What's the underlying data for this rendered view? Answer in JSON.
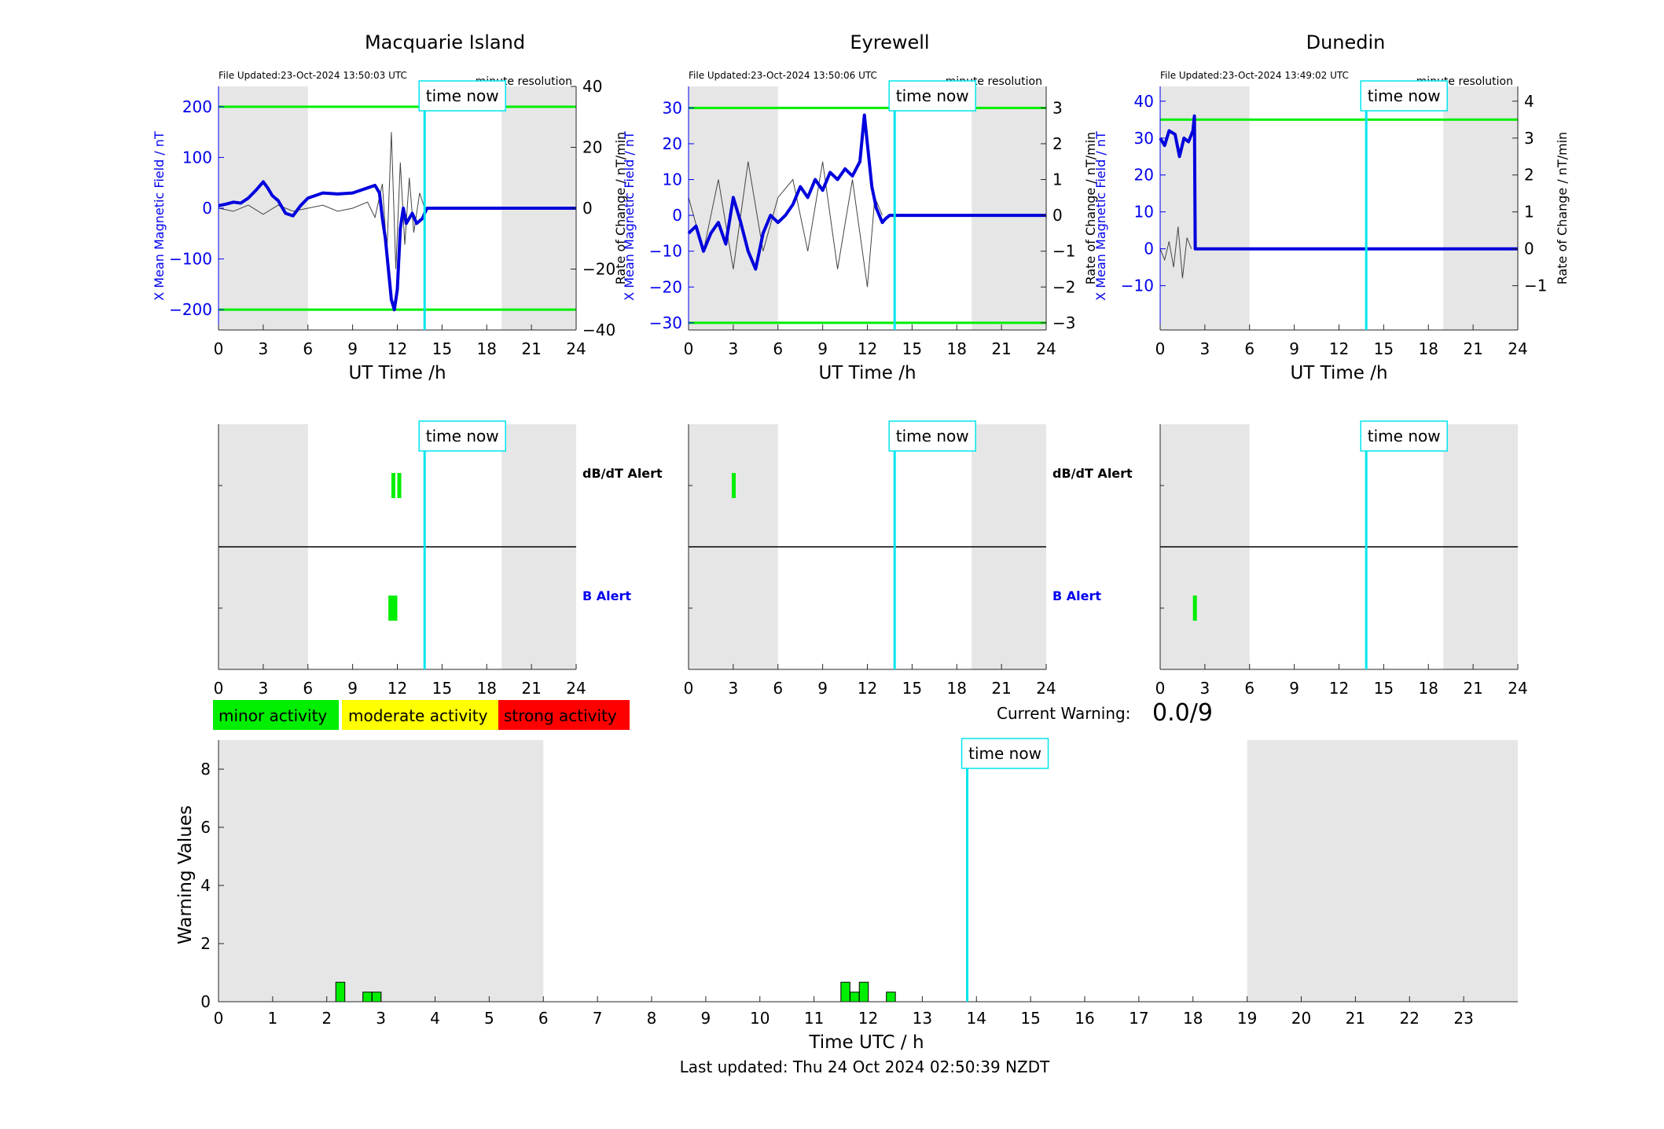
{
  "colors": {
    "shade": "#e6e6e6",
    "threshold": "#00ee00",
    "mean_line": "#0000dd",
    "roc_line": "#444444",
    "now_line": "#00e5ee",
    "alert_bar": "#00ee00",
    "minor": "#00ee00",
    "moderate": "#ffff00",
    "strong": "#ff0000",
    "axis_blue": "#0000ee"
  },
  "common": {
    "xlabel": "UT Time /h",
    "time_now_label": "time now",
    "resolution_label": "minute resolution",
    "left_ylabel": "X Mean Magnetic Field / nT",
    "right_ylabel": "Rate of Change / nT/min",
    "dbdt_alert_label": "dB/dT Alert",
    "b_alert_label": "B Alert",
    "x_ticks": [
      0,
      3,
      6,
      9,
      12,
      15,
      18,
      21,
      24
    ],
    "now_hour": 13.83,
    "night_shading": [
      [
        0,
        6
      ],
      [
        19,
        24
      ]
    ]
  },
  "legend": {
    "minor": "minor activity",
    "moderate": "moderate activity",
    "strong": "strong activity"
  },
  "current_warning": {
    "label": "Current Warning:",
    "value": "0.0/9"
  },
  "footer": {
    "last_updated": "Last updated: Thu 24 Oct 2024 02:50:39 NZDT"
  },
  "chart_data": [
    {
      "type": "line",
      "title": "Macquarie Island",
      "file_updated": "File Updated:23-Oct-2024 13:50:03 UTC",
      "xlim": [
        0,
        24
      ],
      "ylim_left": [
        -240,
        240
      ],
      "yticks_left": [
        -200,
        -100,
        0,
        100,
        200
      ],
      "ylim_right": [
        -40,
        40
      ],
      "yticks_right": [
        -40,
        -20,
        0,
        20,
        40
      ],
      "thresholds_left": [
        200,
        -200
      ],
      "series_mean": {
        "x": [
          0,
          0.5,
          1,
          1.5,
          2,
          2.5,
          3,
          3.3,
          3.6,
          4,
          4.5,
          5,
          5.5,
          6,
          7,
          8,
          9,
          10,
          10.5,
          10.8,
          11,
          11.2,
          11.4,
          11.6,
          11.8,
          12,
          12.2,
          12.4,
          12.6,
          12.8,
          13,
          13.3,
          13.5,
          13.7,
          13.83,
          14,
          24
        ],
        "y": [
          5,
          8,
          12,
          10,
          20,
          35,
          52,
          40,
          25,
          15,
          -10,
          -15,
          5,
          20,
          30,
          28,
          30,
          40,
          45,
          30,
          -20,
          -60,
          -120,
          -180,
          -200,
          -160,
          -40,
          0,
          -30,
          -20,
          -10,
          -30,
          -25,
          -20,
          -10,
          0,
          0
        ]
      },
      "series_roc": {
        "x": [
          0,
          1,
          2,
          3,
          4,
          5,
          6,
          7,
          8,
          9,
          10,
          10.5,
          11,
          11.3,
          11.6,
          11.9,
          12.2,
          12.5,
          12.8,
          13.1,
          13.5,
          13.83
        ],
        "y": [
          0,
          -1,
          1,
          -2,
          1,
          -1,
          0,
          1,
          -1,
          0,
          2,
          -3,
          8,
          -15,
          25,
          -20,
          15,
          -12,
          10,
          -8,
          5,
          0
        ]
      },
      "dbdt_alerts": [
        [
          11.6,
          11.8
        ],
        [
          12.0,
          12.2
        ]
      ],
      "b_alerts": [
        [
          11.4,
          12.0
        ]
      ]
    },
    {
      "type": "line",
      "title": "Eyrewell",
      "file_updated": "File Updated:23-Oct-2024 13:50:06 UTC",
      "xlim": [
        0,
        24
      ],
      "ylim_left": [
        -32,
        36
      ],
      "yticks_left": [
        -30,
        -20,
        -10,
        0,
        10,
        20,
        30
      ],
      "ylim_right": [
        -3.2,
        3.6
      ],
      "yticks_right": [
        -3,
        -2,
        -1,
        0,
        1,
        2,
        3
      ],
      "thresholds_left": [
        30,
        -30
      ],
      "series_mean": {
        "x": [
          0,
          0.5,
          1,
          1.5,
          2,
          2.5,
          3,
          3.5,
          4,
          4.5,
          5,
          5.5,
          6,
          6.5,
          7,
          7.5,
          8,
          8.5,
          9,
          9.5,
          10,
          10.5,
          11,
          11.5,
          11.8,
          12,
          12.3,
          12.6,
          13,
          13.2,
          13.5,
          24
        ],
        "y": [
          -5,
          -3,
          -10,
          -5,
          -2,
          -8,
          5,
          -2,
          -10,
          -15,
          -5,
          0,
          -2,
          0,
          3,
          8,
          5,
          10,
          7,
          12,
          10,
          13,
          11,
          15,
          28,
          20,
          8,
          2,
          -2,
          -1,
          0,
          0
        ]
      },
      "series_roc": {
        "x": [
          0,
          1,
          2,
          3,
          4,
          5,
          6,
          7,
          8,
          9,
          10,
          11,
          12,
          12.5,
          13
        ],
        "y": [
          0.5,
          -1,
          1,
          -1.5,
          1.5,
          -1,
          0.5,
          1,
          -1,
          1.5,
          -1.5,
          1,
          -2,
          0.5,
          0
        ]
      },
      "dbdt_alerts": [
        [
          2.9,
          3.1
        ]
      ],
      "b_alerts": []
    },
    {
      "type": "line",
      "title": "Dunedin",
      "file_updated": "File Updated:23-Oct-2024 13:49:02 UTC",
      "xlim": [
        0,
        24
      ],
      "ylim_left": [
        -22,
        44
      ],
      "yticks_left": [
        -10,
        0,
        10,
        20,
        30,
        40
      ],
      "ylim_right": [
        -2.2,
        4.4
      ],
      "yticks_right": [
        -1,
        0,
        1,
        2,
        3,
        4
      ],
      "thresholds_left": [
        35
      ],
      "series_mean": {
        "x": [
          0,
          0.3,
          0.6,
          1,
          1.3,
          1.6,
          1.9,
          2.2,
          2.3,
          2.35,
          2.4,
          24
        ],
        "y": [
          30,
          28,
          32,
          31,
          25,
          30,
          29,
          32,
          36,
          0,
          0,
          0
        ]
      },
      "series_roc": {
        "x": [
          0,
          0.3,
          0.6,
          0.9,
          1.2,
          1.5,
          1.8,
          2.1
        ],
        "y": [
          0,
          -0.3,
          0.2,
          -0.5,
          0.6,
          -0.8,
          0.3,
          0
        ]
      },
      "dbdt_alerts": [],
      "b_alerts": [
        [
          2.2,
          2.4
        ]
      ]
    },
    {
      "type": "bar",
      "ylabel": "Warning Values",
      "xlabel": "Time UTC / h",
      "xlim": [
        0,
        24
      ],
      "ylim": [
        0,
        9
      ],
      "yticks": [
        0,
        2,
        4,
        6,
        8
      ],
      "xticks": [
        0,
        1,
        2,
        3,
        4,
        5,
        6,
        7,
        8,
        9,
        10,
        11,
        12,
        13,
        14,
        15,
        16,
        17,
        18,
        19,
        20,
        21,
        22,
        23
      ],
      "night_shading": [
        [
          0,
          6
        ],
        [
          19,
          24
        ]
      ],
      "bars": {
        "x": [
          2.25,
          2.75,
          2.92,
          11.58,
          11.75,
          11.92,
          12.42
        ],
        "y": [
          0.67,
          0.33,
          0.33,
          0.67,
          0.33,
          0.67,
          0.33
        ]
      }
    }
  ]
}
